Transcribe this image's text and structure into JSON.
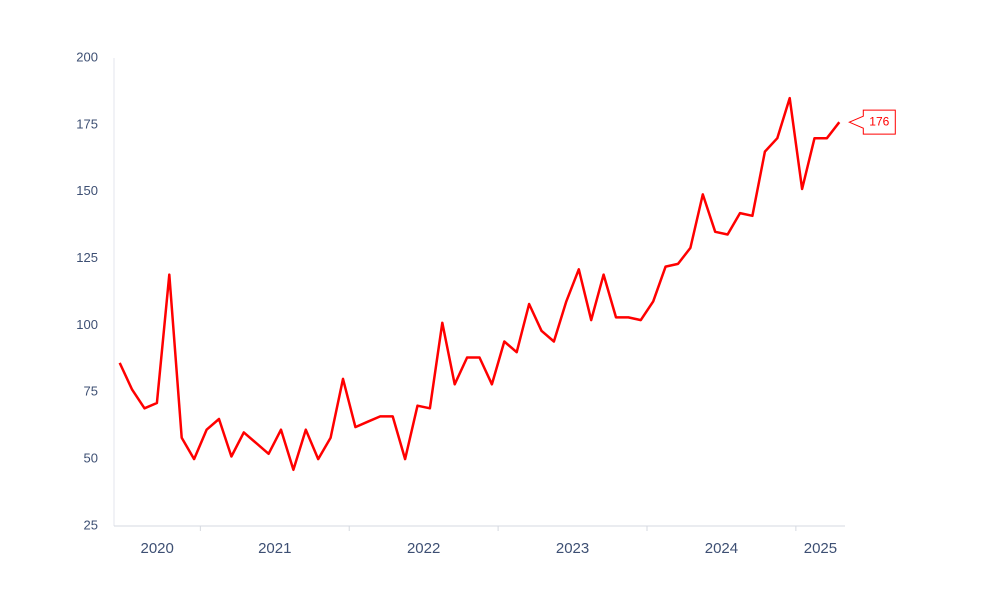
{
  "chart_data": {
    "type": "line",
    "color": "#ff0000",
    "x": [
      "2020-06",
      "2020-07",
      "2020-08",
      "2020-09",
      "2020-10",
      "2020-11",
      "2020-12",
      "2021-01",
      "2021-02",
      "2021-03",
      "2021-04",
      "2021-05",
      "2021-06",
      "2021-07",
      "2021-08",
      "2021-09",
      "2021-10",
      "2021-11",
      "2021-12",
      "2022-01",
      "2022-02",
      "2022-03",
      "2022-04",
      "2022-05",
      "2022-06",
      "2022-07",
      "2022-08",
      "2022-09",
      "2022-10",
      "2022-11",
      "2022-12",
      "2023-01",
      "2023-02",
      "2023-03",
      "2023-04",
      "2023-05",
      "2023-06",
      "2023-07",
      "2023-08",
      "2023-09",
      "2023-10",
      "2023-11",
      "2023-12",
      "2024-01",
      "2024-02",
      "2024-03",
      "2024-04",
      "2024-05",
      "2024-06",
      "2024-07",
      "2024-08",
      "2024-09",
      "2024-10",
      "2024-11",
      "2024-12",
      "2025-01",
      "2025-02",
      "2025-03",
      "2025-04"
    ],
    "values": [
      86,
      76,
      69,
      71,
      119,
      58,
      50,
      61,
      65,
      51,
      60,
      56,
      52,
      61,
      46,
      61,
      50,
      58,
      80,
      62,
      64,
      66,
      66,
      50,
      70,
      69,
      101,
      78,
      88,
      88,
      78,
      94,
      90,
      108,
      98,
      94,
      109,
      121,
      102,
      119,
      103,
      103,
      102,
      109,
      122,
      123,
      129,
      149,
      135,
      134,
      142,
      141,
      165,
      170,
      185,
      151,
      170,
      170,
      176
    ],
    "xlim": [
      2020.42,
      2025.33
    ],
    "xticks": [
      2020,
      2021,
      2022,
      2023,
      2024,
      2025
    ],
    "ylim": [
      25,
      200
    ],
    "yticks": [
      25,
      50,
      75,
      100,
      125,
      150,
      175,
      200
    ],
    "grid": false
  }
}
